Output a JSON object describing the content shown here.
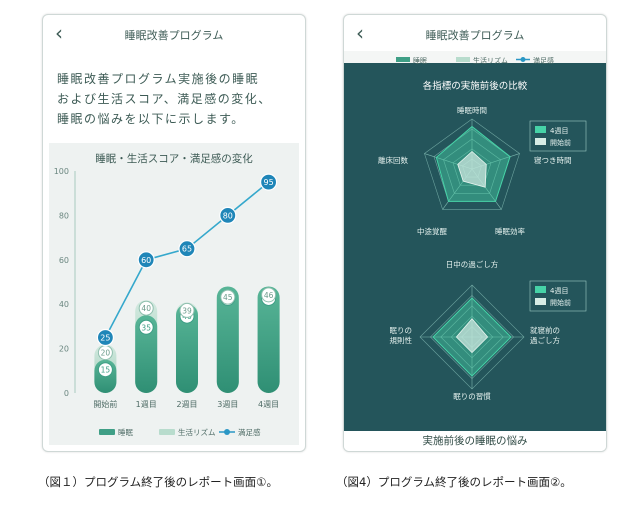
{
  "phone1": {
    "back_icon": "chevron-left-icon",
    "title": "睡眠改善プログラム",
    "intro_lines": [
      "睡眠改善プログラム実施後の睡眠",
      "および生活スコア、満足感の変化、",
      "睡眠の悩みを以下に示します。"
    ]
  },
  "phone2": {
    "back_icon": "chevron-left-icon",
    "title": "睡眠改善プログラム",
    "legend_items": [
      "睡眠",
      "生活リズム",
      "満足感"
    ],
    "footer": "実施前後の睡眠の悩み"
  },
  "captions": {
    "fig1": "（図１）プログラム終了後のレポート画面①。",
    "fig4": "（図4）プログラム終了後のレポート画面②。"
  },
  "colors": {
    "sleep": "#3f9f86",
    "rhythm": "#b8dccd",
    "satisfaction": "#2a97c5",
    "dark_panel": "#24555b",
    "radar_after": "#46d3a7",
    "radar_before": "#d6ece5"
  },
  "chart_data": [
    {
      "type": "bar",
      "title": "睡眠・生活スコア・満足感の変化",
      "categories": [
        "開始前",
        "1週目",
        "2週目",
        "3週目",
        "4週目"
      ],
      "series": [
        {
          "name": "睡眠",
          "type": "bar",
          "values": [
            15,
            35,
            40,
            48,
            48
          ]
        },
        {
          "name": "生活リズム",
          "type": "bar-range",
          "values": [
            20,
            40,
            39,
            45,
            46
          ]
        },
        {
          "name": "満足感",
          "type": "line",
          "values": [
            25,
            60,
            65,
            80,
            95
          ]
        }
      ],
      "y_ticks": [
        0,
        20,
        40,
        60,
        80,
        100
      ],
      "ylim": [
        0,
        100
      ],
      "legend": [
        "睡眠",
        "生活リズム",
        "満足感"
      ],
      "legend_position": "bottom"
    },
    {
      "type": "radar",
      "title": "各指標の実施前後の比較",
      "axes": [
        "睡眠時間",
        "寝つき時間",
        "睡眠効率",
        "中途覚醒",
        "離床回数"
      ],
      "series": [
        {
          "name": "4週目",
          "values": [
            0.85,
            0.8,
            0.8,
            0.8,
            0.75
          ]
        },
        {
          "name": "開始前",
          "values": [
            0.35,
            0.3,
            0.45,
            0.3,
            0.3
          ]
        }
      ],
      "legend_position": "top-right"
    },
    {
      "type": "radar",
      "axes": [
        "日中の過ごし方",
        "就寝前の\n過ごし方",
        "眠りの習慣",
        "眠りの\n規則性"
      ],
      "series": [
        {
          "name": "4週目",
          "values": [
            0.75,
            0.75,
            0.75,
            0.75
          ]
        },
        {
          "name": "開始前",
          "values": [
            0.35,
            0.3,
            0.3,
            0.3
          ]
        }
      ],
      "legend_position": "top-right"
    }
  ]
}
